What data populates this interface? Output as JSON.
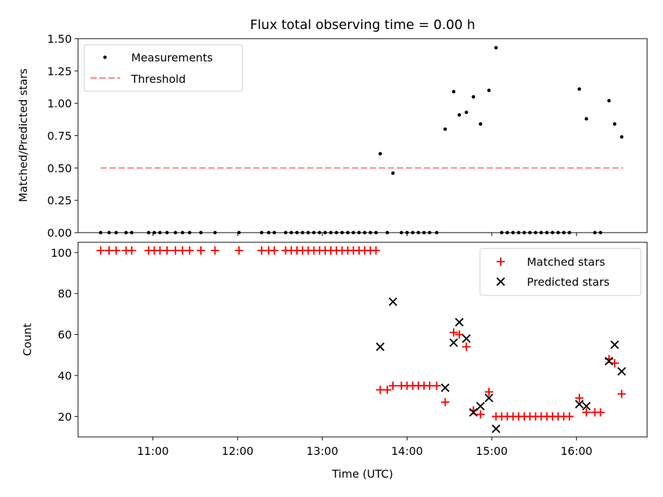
{
  "chart_data": [
    {
      "type": "scatter",
      "title": "Flux total observing time = 0.00 h",
      "xlabel": "",
      "ylabel": "Matched/Predicted stars",
      "ylim": [
        0,
        1.5
      ],
      "yticks": [
        "0.00",
        "0.25",
        "0.50",
        "0.75",
        "1.00",
        "1.25",
        "1.50"
      ],
      "xlim": [
        "10:07",
        "16:50"
      ],
      "legend_position": "top-left",
      "legend": [
        {
          "label": "Measurements",
          "marker": "dot",
          "color": "#000000"
        },
        {
          "label": "Threshold",
          "marker": "dashed-line",
          "color": "#ff8080"
        }
      ],
      "threshold": {
        "value": 0.5,
        "x_start": "10:23",
        "x_end": "16:33",
        "color": "#ff8080"
      },
      "series": [
        {
          "marker": "dot",
          "color": "#000000",
          "points": [
            {
              "x": "10:23",
              "y": 0
            },
            {
              "x": "10:29",
              "y": 0
            },
            {
              "x": "10:34",
              "y": 0
            },
            {
              "x": "10:41",
              "y": 0
            },
            {
              "x": "10:45",
              "y": 0
            },
            {
              "x": "10:57",
              "y": 0
            },
            {
              "x": "11:01",
              "y": 0
            },
            {
              "x": "11:05",
              "y": 0
            },
            {
              "x": "11:10",
              "y": 0
            },
            {
              "x": "11:16",
              "y": 0
            },
            {
              "x": "11:21",
              "y": 0
            },
            {
              "x": "11:26",
              "y": 0
            },
            {
              "x": "11:34",
              "y": 0
            },
            {
              "x": "11:44",
              "y": 0
            },
            {
              "x": "12:01",
              "y": 0
            },
            {
              "x": "12:17",
              "y": 0
            },
            {
              "x": "12:22",
              "y": 0
            },
            {
              "x": "12:26",
              "y": 0
            },
            {
              "x": "12:34",
              "y": 0
            },
            {
              "x": "12:38",
              "y": 0
            },
            {
              "x": "12:42",
              "y": 0
            },
            {
              "x": "12:46",
              "y": 0
            },
            {
              "x": "12:50",
              "y": 0
            },
            {
              "x": "12:54",
              "y": 0
            },
            {
              "x": "12:58",
              "y": 0
            },
            {
              "x": "13:02",
              "y": 0
            },
            {
              "x": "13:06",
              "y": 0
            },
            {
              "x": "13:10",
              "y": 0
            },
            {
              "x": "13:14",
              "y": 0
            },
            {
              "x": "13:18",
              "y": 0
            },
            {
              "x": "13:22",
              "y": 0
            },
            {
              "x": "13:26",
              "y": 0
            },
            {
              "x": "13:30",
              "y": 0
            },
            {
              "x": "13:34",
              "y": 0
            },
            {
              "x": "13:38",
              "y": 0
            },
            {
              "x": "13:46",
              "y": 0
            },
            {
              "x": "13:56",
              "y": 0
            },
            {
              "x": "14:00",
              "y": 0
            },
            {
              "x": "14:04",
              "y": 0
            },
            {
              "x": "14:08",
              "y": 0
            },
            {
              "x": "14:12",
              "y": 0
            },
            {
              "x": "14:16",
              "y": 0
            },
            {
              "x": "14:21",
              "y": 0
            },
            {
              "x": "13:41",
              "y": 0.61
            },
            {
              "x": "13:50",
              "y": 0.46
            },
            {
              "x": "14:27",
              "y": 0.8
            },
            {
              "x": "14:33",
              "y": 1.09
            },
            {
              "x": "14:37",
              "y": 0.91
            },
            {
              "x": "14:42",
              "y": 0.93
            },
            {
              "x": "14:47",
              "y": 1.05
            },
            {
              "x": "14:52",
              "y": 0.84
            },
            {
              "x": "14:58",
              "y": 1.1
            },
            {
              "x": "15:03",
              "y": 1.43
            },
            {
              "x": "15:07",
              "y": 0
            },
            {
              "x": "15:11",
              "y": 0
            },
            {
              "x": "15:15",
              "y": 0
            },
            {
              "x": "15:19",
              "y": 0
            },
            {
              "x": "15:23",
              "y": 0
            },
            {
              "x": "15:27",
              "y": 0
            },
            {
              "x": "15:31",
              "y": 0
            },
            {
              "x": "15:35",
              "y": 0
            },
            {
              "x": "15:39",
              "y": 0
            },
            {
              "x": "15:43",
              "y": 0
            },
            {
              "x": "15:47",
              "y": 0
            },
            {
              "x": "15:51",
              "y": 0
            },
            {
              "x": "15:55",
              "y": 0
            },
            {
              "x": "16:02",
              "y": 1.11
            },
            {
              "x": "16:07",
              "y": 0.88
            },
            {
              "x": "16:13",
              "y": 0
            },
            {
              "x": "16:17",
              "y": 0
            },
            {
              "x": "16:23",
              "y": 1.02
            },
            {
              "x": "16:27",
              "y": 0.84
            },
            {
              "x": "16:32",
              "y": 0.74
            }
          ]
        }
      ]
    },
    {
      "type": "scatter",
      "title": "",
      "xlabel": "Time (UTC)",
      "ylabel": "Count",
      "ylim": [
        10,
        105
      ],
      "yticks": [
        "20",
        "40",
        "60",
        "80",
        "100"
      ],
      "xlim": [
        "10:07",
        "16:50"
      ],
      "xticks": [
        "11:00",
        "12:00",
        "13:00",
        "14:00",
        "15:00",
        "16:00"
      ],
      "legend_position": "top-right",
      "legend": [
        {
          "label": "Matched stars",
          "marker": "plus",
          "color": "#ff0000"
        },
        {
          "label": "Predicted stars",
          "marker": "x",
          "color": "#000000"
        }
      ],
      "series": [
        {
          "name": "Matched stars",
          "marker": "plus",
          "color": "#ff0000",
          "points": [
            {
              "x": "10:23",
              "y": 101
            },
            {
              "x": "10:29",
              "y": 101
            },
            {
              "x": "10:34",
              "y": 101
            },
            {
              "x": "10:41",
              "y": 101
            },
            {
              "x": "10:45",
              "y": 101
            },
            {
              "x": "10:57",
              "y": 101
            },
            {
              "x": "11:01",
              "y": 101
            },
            {
              "x": "11:05",
              "y": 101
            },
            {
              "x": "11:10",
              "y": 101
            },
            {
              "x": "11:16",
              "y": 101
            },
            {
              "x": "11:21",
              "y": 101
            },
            {
              "x": "11:26",
              "y": 101
            },
            {
              "x": "11:34",
              "y": 101
            },
            {
              "x": "11:44",
              "y": 101
            },
            {
              "x": "12:01",
              "y": 101
            },
            {
              "x": "12:17",
              "y": 101
            },
            {
              "x": "12:22",
              "y": 101
            },
            {
              "x": "12:26",
              "y": 101
            },
            {
              "x": "12:34",
              "y": 101
            },
            {
              "x": "12:38",
              "y": 101
            },
            {
              "x": "12:42",
              "y": 101
            },
            {
              "x": "12:46",
              "y": 101
            },
            {
              "x": "12:50",
              "y": 101
            },
            {
              "x": "12:54",
              "y": 101
            },
            {
              "x": "12:58",
              "y": 101
            },
            {
              "x": "13:02",
              "y": 101
            },
            {
              "x": "13:06",
              "y": 101
            },
            {
              "x": "13:10",
              "y": 101
            },
            {
              "x": "13:14",
              "y": 101
            },
            {
              "x": "13:18",
              "y": 101
            },
            {
              "x": "13:22",
              "y": 101
            },
            {
              "x": "13:26",
              "y": 101
            },
            {
              "x": "13:30",
              "y": 101
            },
            {
              "x": "13:34",
              "y": 101
            },
            {
              "x": "13:38",
              "y": 101
            },
            {
              "x": "13:41",
              "y": 33
            },
            {
              "x": "13:46",
              "y": 33
            },
            {
              "x": "13:50",
              "y": 35
            },
            {
              "x": "13:56",
              "y": 35
            },
            {
              "x": "14:00",
              "y": 35
            },
            {
              "x": "14:04",
              "y": 35
            },
            {
              "x": "14:08",
              "y": 35
            },
            {
              "x": "14:12",
              "y": 35
            },
            {
              "x": "14:16",
              "y": 35
            },
            {
              "x": "14:21",
              "y": 35
            },
            {
              "x": "14:27",
              "y": 27
            },
            {
              "x": "14:33",
              "y": 61
            },
            {
              "x": "14:37",
              "y": 60
            },
            {
              "x": "14:42",
              "y": 54
            },
            {
              "x": "14:47",
              "y": 23
            },
            {
              "x": "14:52",
              "y": 21
            },
            {
              "x": "14:58",
              "y": 32
            },
            {
              "x": "15:03",
              "y": 20
            },
            {
              "x": "15:07",
              "y": 20
            },
            {
              "x": "15:11",
              "y": 20
            },
            {
              "x": "15:15",
              "y": 20
            },
            {
              "x": "15:19",
              "y": 20
            },
            {
              "x": "15:23",
              "y": 20
            },
            {
              "x": "15:27",
              "y": 20
            },
            {
              "x": "15:31",
              "y": 20
            },
            {
              "x": "15:35",
              "y": 20
            },
            {
              "x": "15:39",
              "y": 20
            },
            {
              "x": "15:43",
              "y": 20
            },
            {
              "x": "15:47",
              "y": 20
            },
            {
              "x": "15:51",
              "y": 20
            },
            {
              "x": "15:55",
              "y": 20
            },
            {
              "x": "16:02",
              "y": 29
            },
            {
              "x": "16:07",
              "y": 22
            },
            {
              "x": "16:13",
              "y": 22
            },
            {
              "x": "16:17",
              "y": 22
            },
            {
              "x": "16:23",
              "y": 48
            },
            {
              "x": "16:27",
              "y": 46
            },
            {
              "x": "16:32",
              "y": 31
            }
          ]
        },
        {
          "name": "Predicted stars",
          "marker": "x",
          "color": "#000000",
          "points": [
            {
              "x": "13:41",
              "y": 54
            },
            {
              "x": "13:50",
              "y": 76
            },
            {
              "x": "14:27",
              "y": 34
            },
            {
              "x": "14:33",
              "y": 56
            },
            {
              "x": "14:37",
              "y": 66
            },
            {
              "x": "14:42",
              "y": 58
            },
            {
              "x": "14:47",
              "y": 22
            },
            {
              "x": "14:52",
              "y": 25
            },
            {
              "x": "14:58",
              "y": 29
            },
            {
              "x": "15:03",
              "y": 14
            },
            {
              "x": "16:02",
              "y": 26
            },
            {
              "x": "16:07",
              "y": 25
            },
            {
              "x": "16:23",
              "y": 47
            },
            {
              "x": "16:27",
              "y": 55
            },
            {
              "x": "16:32",
              "y": 42
            }
          ]
        }
      ]
    }
  ]
}
